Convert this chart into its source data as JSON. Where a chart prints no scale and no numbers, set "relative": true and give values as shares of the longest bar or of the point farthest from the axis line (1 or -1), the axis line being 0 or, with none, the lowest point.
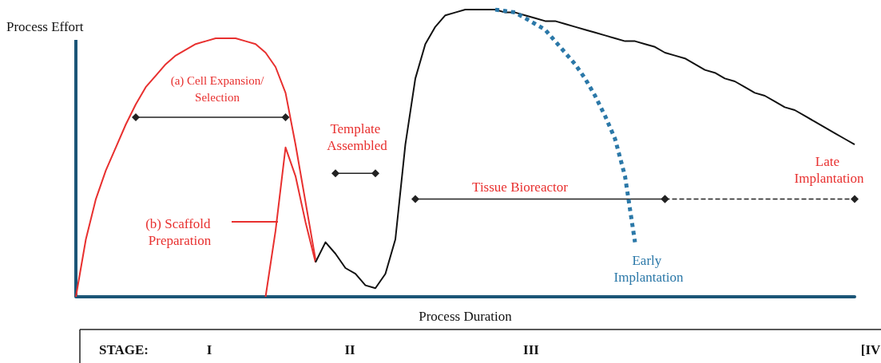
{
  "chart_data": {
    "type": "line",
    "relative": true,
    "xlabel": "Process Duration",
    "ylabel": "Process Effort",
    "categories": [
      null,
      null,
      null,
      null,
      null,
      null,
      null,
      null,
      null,
      null,
      null,
      null,
      null,
      null,
      null,
      null,
      null,
      null,
      null,
      null,
      null,
      null,
      null,
      null,
      null,
      null,
      null,
      null,
      null,
      null,
      null,
      null,
      null,
      null,
      null,
      null,
      null,
      null,
      null,
      null,
      null,
      null,
      null,
      null,
      null,
      null,
      null,
      null,
      null,
      null,
      null,
      null,
      null,
      null,
      null,
      null,
      null,
      null,
      null,
      null,
      null,
      null,
      null,
      null,
      null,
      null,
      null,
      null,
      null,
      null,
      null,
      null,
      null,
      null,
      null,
      null,
      null,
      null,
      null
    ],
    "series": [
      {
        "name": "(a) Cell Expansion/Selection",
        "color": "#e8302f",
        "marker": "none",
        "values": [
          0,
          0.2,
          0.34,
          0.44,
          0.52,
          0.6,
          0.67,
          0.73,
          0.77,
          0.81,
          0.84,
          0.86,
          0.88,
          0.89,
          0.9,
          0.9,
          0.9,
          0.89,
          0.88,
          0.85,
          0.8,
          0.71,
          0.53,
          0.33,
          0.13,
          null,
          null,
          null,
          null,
          null,
          null,
          null,
          null,
          null,
          null,
          null,
          null,
          null,
          null,
          null,
          null,
          null,
          null,
          null,
          null,
          null,
          null,
          null,
          null,
          null,
          null,
          null,
          null,
          null,
          null,
          null,
          null,
          null,
          null,
          null,
          null,
          null,
          null,
          null,
          null,
          null,
          null,
          null,
          null,
          null,
          null,
          null,
          null,
          null,
          null,
          null,
          null,
          null,
          null
        ]
      },
      {
        "name": "(b) Scaffold Preparation",
        "color": "#e8302f",
        "marker": "none",
        "values": [
          null,
          null,
          null,
          null,
          null,
          null,
          null,
          null,
          null,
          null,
          null,
          null,
          null,
          null,
          null,
          null,
          null,
          null,
          null,
          0,
          0.23,
          0.52,
          0.42,
          0.26,
          0.12,
          null,
          null,
          null,
          null,
          null,
          null,
          null,
          null,
          null,
          null,
          null,
          null,
          null,
          null,
          null,
          null,
          null,
          null,
          null,
          null,
          null,
          null,
          null,
          null,
          null,
          null,
          null,
          null,
          null,
          null,
          null,
          null,
          null,
          null,
          null,
          null,
          null,
          null,
          null,
          null,
          null,
          null,
          null,
          null,
          null,
          null,
          null,
          null,
          null,
          null,
          null,
          null,
          null,
          null
        ]
      },
      {
        "color": "#111111",
        "marker": "none",
        "values": [
          null,
          null,
          null,
          null,
          null,
          null,
          null,
          null,
          null,
          null,
          null,
          null,
          null,
          null,
          null,
          null,
          null,
          null,
          null,
          null,
          null,
          null,
          null,
          null,
          0.12,
          0.19,
          0.15,
          0.1,
          0.08,
          0.04,
          0.03,
          0.08,
          0.2,
          0.53,
          0.76,
          0.88,
          0.94,
          0.98,
          0.99,
          1,
          1,
          1,
          1,
          0.99,
          0.99,
          0.98,
          0.97,
          0.96,
          0.96,
          0.95,
          0.94,
          0.93,
          0.92,
          0.91,
          0.9,
          0.89,
          0.89,
          0.88,
          0.87,
          0.85,
          0.84,
          0.83,
          0.81,
          0.79,
          0.78,
          0.76,
          0.75,
          0.73,
          0.71,
          0.7,
          0.68,
          0.66,
          0.65,
          0.63,
          0.61,
          0.59,
          0.57,
          0.55,
          0.53
        ]
      },
      {
        "name": "Early Implantation",
        "color": "#2b78a8",
        "marker": "none",
        "line_style": "dotted",
        "values": [
          null,
          null,
          null,
          null,
          null,
          null,
          null,
          null,
          null,
          null,
          null,
          null,
          null,
          null,
          null,
          null,
          null,
          null,
          null,
          null,
          null,
          null,
          null,
          null,
          null,
          null,
          null,
          null,
          null,
          null,
          null,
          null,
          null,
          null,
          null,
          null,
          null,
          null,
          null,
          null,
          null,
          null,
          1,
          0.995,
          0.99,
          0.97,
          0.95,
          0.93,
          0.89,
          0.85,
          0.81,
          0.76,
          0.7,
          0.63,
          0.55,
          0.42,
          0.19,
          null,
          null,
          null,
          null,
          null,
          null,
          null,
          null,
          null,
          null,
          null,
          null,
          null,
          null,
          null,
          null,
          null,
          null,
          null,
          null,
          null,
          null
        ]
      },
      {
        "color": "#222222",
        "marker": "diamond",
        "values": [
          null,
          null,
          null,
          null,
          null,
          null,
          0.625,
          null,
          null,
          null,
          null,
          null,
          null,
          null,
          null,
          null,
          null,
          null,
          null,
          null,
          null,
          0.625,
          null,
          null,
          null,
          null,
          null,
          null,
          null,
          null,
          null,
          null,
          null,
          null,
          null,
          null,
          null,
          null,
          null,
          null,
          null,
          null,
          null,
          null,
          null,
          null,
          null,
          null,
          null,
          null,
          null,
          null,
          null,
          null,
          null,
          null,
          null,
          null,
          null,
          null,
          null,
          null,
          null,
          null,
          null,
          null,
          null,
          null,
          null,
          null,
          null,
          null,
          null,
          null,
          null,
          null,
          null,
          null,
          null
        ]
      },
      {
        "color": "#222222",
        "marker": "diamond",
        "values": [
          null,
          null,
          null,
          null,
          null,
          null,
          null,
          null,
          null,
          null,
          null,
          null,
          null,
          null,
          null,
          null,
          null,
          null,
          null,
          null,
          null,
          null,
          null,
          null,
          null,
          null,
          0.43,
          null,
          null,
          null,
          0.43,
          null,
          null,
          null,
          null,
          null,
          null,
          null,
          null,
          null,
          null,
          null,
          null,
          null,
          null,
          null,
          null,
          null,
          null,
          null,
          null,
          null,
          null,
          null,
          null,
          null,
          null,
          null,
          null,
          null,
          null,
          null,
          null,
          null,
          null,
          null,
          null,
          null,
          null,
          null,
          null,
          null,
          null,
          null,
          null,
          null,
          null,
          null,
          null
        ]
      },
      {
        "color": "#222222",
        "marker": "diamond",
        "values": [
          null,
          null,
          null,
          null,
          null,
          null,
          null,
          null,
          null,
          null,
          null,
          null,
          null,
          null,
          null,
          null,
          null,
          null,
          null,
          null,
          null,
          null,
          null,
          null,
          null,
          null,
          null,
          null,
          null,
          null,
          null,
          null,
          null,
          null,
          0.34,
          null,
          null,
          null,
          null,
          null,
          null,
          null,
          null,
          null,
          null,
          null,
          null,
          null,
          null,
          null,
          null,
          null,
          null,
          null,
          null,
          null,
          null,
          null,
          null,
          0.34,
          null,
          null,
          null,
          null,
          null,
          null,
          null,
          null,
          null,
          null,
          null,
          null,
          null,
          null,
          null,
          null,
          null,
          null,
          null
        ]
      },
      {
        "color": "#222222",
        "marker": "diamond",
        "line_style": "dashed",
        "values": [
          null,
          null,
          null,
          null,
          null,
          null,
          null,
          null,
          null,
          null,
          null,
          null,
          null,
          null,
          null,
          null,
          null,
          null,
          null,
          null,
          null,
          null,
          null,
          null,
          null,
          null,
          null,
          null,
          null,
          null,
          null,
          null,
          null,
          null,
          null,
          null,
          null,
          null,
          null,
          null,
          null,
          null,
          null,
          null,
          null,
          null,
          null,
          null,
          null,
          null,
          null,
          null,
          null,
          null,
          null,
          null,
          null,
          null,
          null,
          0.34,
          null,
          null,
          null,
          null,
          null,
          null,
          null,
          null,
          null,
          null,
          null,
          null,
          null,
          null,
          null,
          null,
          null,
          null,
          0.34
        ]
      }
    ],
    "annotations": [
      "Template Assembled",
      "Tissue Bioreactor",
      "Late Implantation",
      "STAGE:",
      "I",
      "II",
      "III",
      "[IV"
    ]
  }
}
